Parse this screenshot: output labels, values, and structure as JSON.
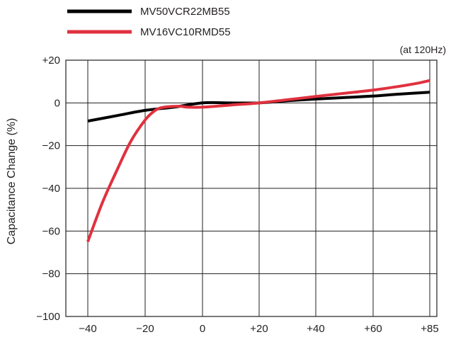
{
  "chart_data": {
    "type": "line",
    "title": "",
    "annotation": "(at 120Hz)",
    "xlabel": "",
    "ylabel": "Capacitance Change (%)",
    "x_ticks": [
      -40,
      -20,
      0,
      20,
      40,
      60,
      85
    ],
    "x_tick_labels": [
      "−40",
      "−20",
      "0",
      "+20",
      "+40",
      "+60",
      "+85"
    ],
    "y_ticks": [
      20,
      0,
      -20,
      -40,
      -60,
      -80,
      -100
    ],
    "y_tick_labels": [
      "+20",
      "0",
      "−20",
      "−40",
      "−60",
      "−80",
      "−100"
    ],
    "ylim": [
      -100,
      20
    ],
    "grid": true,
    "legend_placement": "top-left",
    "series": [
      {
        "name": "MV50VCR22MB55",
        "color": "#000000",
        "x": [
          -40,
          -30,
          -20,
          -10,
          0,
          10,
          20,
          30,
          40,
          50,
          60,
          70,
          85
        ],
        "y": [
          -8.5,
          -6,
          -3.5,
          -2,
          0,
          0,
          0,
          1,
          1.8,
          2.5,
          3.2,
          4,
          5
        ]
      },
      {
        "name": "MV16VC10RMD55",
        "color": "#e0313f",
        "x": [
          -40,
          -35,
          -30,
          -25,
          -20,
          -17,
          -15,
          -12,
          -8,
          -5,
          0,
          10,
          20,
          30,
          40,
          50,
          60,
          70,
          80,
          85
        ],
        "y": [
          -65,
          -47,
          -32,
          -18,
          -8,
          -4,
          -2.5,
          -1.8,
          -1.6,
          -2,
          -2,
          -1,
          0,
          1.5,
          3,
          4.5,
          6,
          7.5,
          9.3,
          10.5
        ]
      }
    ]
  }
}
